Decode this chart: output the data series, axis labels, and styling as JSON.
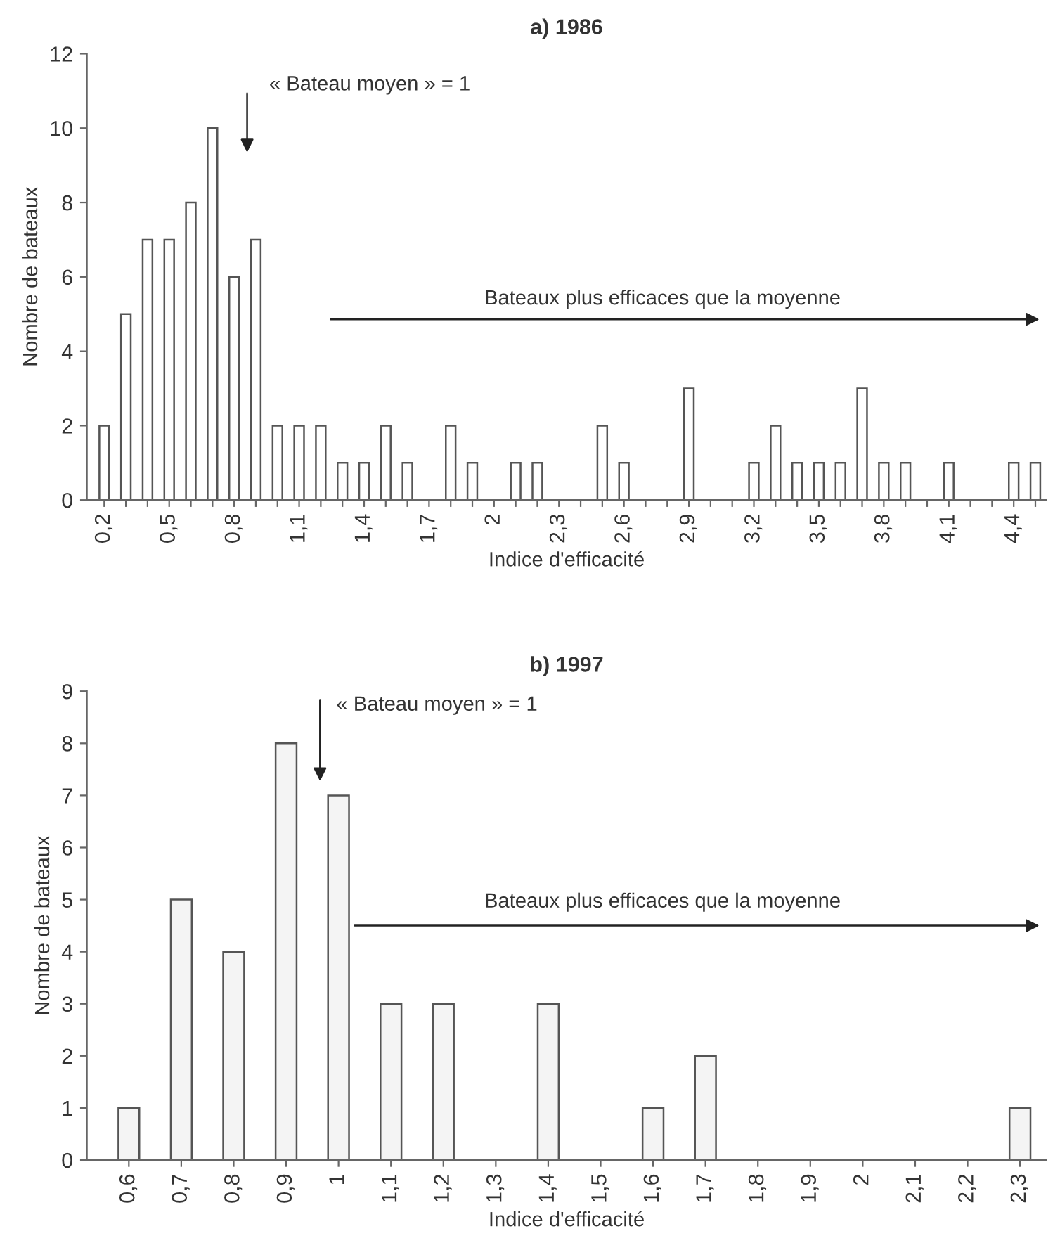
{
  "chart_data": [
    {
      "type": "bar",
      "title": "a) 1986",
      "xlabel": "Indice d'efficacité",
      "ylabel": "Nombre de bateaux",
      "categories": [
        "0,2",
        null,
        null,
        "0,5",
        null,
        null,
        "0,8",
        null,
        null,
        "1,1",
        null,
        null,
        "1,4",
        null,
        null,
        "1,7",
        null,
        null,
        "2",
        null,
        null,
        "2,3",
        null,
        null,
        "2,6",
        null,
        null,
        "2,9",
        null,
        null,
        "3,2",
        null,
        null,
        "3,5",
        null,
        null,
        "3,8",
        null,
        null,
        "4,1",
        null,
        null,
        "4,4",
        null
      ],
      "values": [
        2,
        5,
        7,
        7,
        8,
        10,
        6,
        7,
        2,
        2,
        2,
        1,
        1,
        2,
        1,
        null,
        2,
        1,
        null,
        1,
        1,
        null,
        null,
        2,
        1,
        null,
        null,
        3,
        null,
        null,
        1,
        2,
        1,
        1,
        1,
        3,
        1,
        1,
        null,
        1,
        null,
        null,
        1,
        1
      ],
      "color": "#ffffff",
      "ylim": [
        0,
        12
      ],
      "yticks": [
        0,
        2,
        4,
        6,
        8,
        10,
        12
      ],
      "grid": false,
      "annotations": [
        "« Bateau moyen » = 1",
        "Bateaux plus efficaces que la moyenne"
      ]
    },
    {
      "type": "bar",
      "title": "b) 1997",
      "xlabel": "Indice d'efficacité",
      "ylabel": "Nombre de bateaux",
      "categories": [
        "0,6",
        "0,7",
        "0,8",
        "0,9",
        "1",
        "1,1",
        "1,2",
        "1,3",
        "1,4",
        "1,5",
        "1,6",
        "1,7",
        "1,8",
        "1,9",
        "2",
        "2,1",
        "2,2",
        "2,3"
      ],
      "values": [
        1,
        5,
        4,
        8,
        7,
        3,
        3,
        null,
        3,
        null,
        1,
        2,
        null,
        null,
        null,
        null,
        null,
        1
      ],
      "color": "#f4f4f4",
      "ylim": [
        0,
        9
      ],
      "yticks": [
        0,
        1,
        2,
        3,
        4,
        5,
        6,
        7,
        8,
        9
      ],
      "grid": false,
      "annotations": [
        "« Bateau moyen » = 1",
        "Bateaux plus efficaces que la moyenne"
      ]
    }
  ]
}
